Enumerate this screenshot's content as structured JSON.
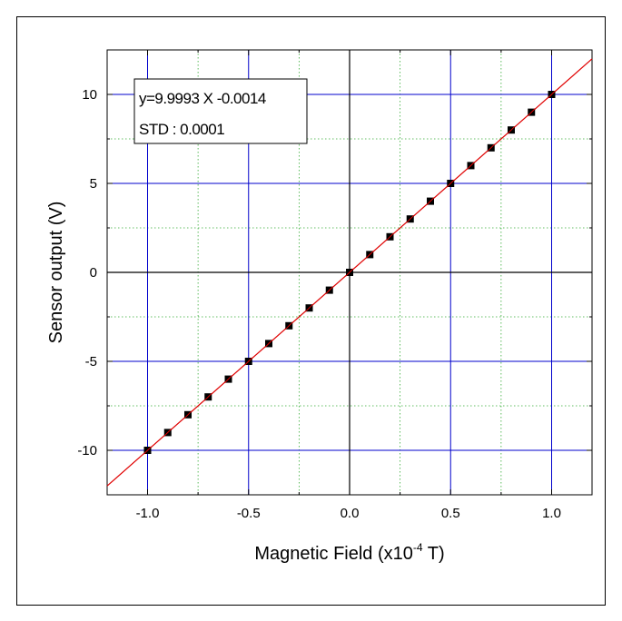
{
  "chart_data": {
    "type": "scatter",
    "xlabel": "Magnetic Field (x10",
    "xlabel_sup": "-4",
    "xlabel_suffix": " T)",
    "ylabel": "Sensor output (V)",
    "xlim": [
      -1.2,
      1.2
    ],
    "ylim": [
      -12.5,
      12.5
    ],
    "xticks": [
      -1.0,
      -0.5,
      0.0,
      0.5,
      1.0
    ],
    "xtick_labels": [
      "-1.0",
      "-0.5",
      "0.0",
      "0.5",
      "1.0"
    ],
    "yticks": [
      -10,
      -5,
      0,
      5,
      10
    ],
    "ytick_labels": [
      "-10",
      "-5",
      "0",
      "5",
      "10"
    ],
    "grid": true,
    "series": [
      {
        "marker": "square",
        "color": "#000000",
        "x": [
          -1.0,
          -0.9,
          -0.8,
          -0.7,
          -0.6,
          -0.5,
          -0.4,
          -0.3,
          -0.2,
          -0.1,
          0.0,
          0.1,
          0.2,
          0.3,
          0.4,
          0.5,
          0.6,
          0.7,
          0.8,
          0.9,
          1.0
        ],
        "y": [
          -10,
          -9,
          -8,
          -7,
          -6,
          -5,
          -4,
          -3,
          -2,
          -1,
          0,
          1,
          2,
          3,
          4,
          5,
          6,
          7,
          8,
          9,
          10
        ]
      }
    ],
    "fit_line": {
      "slope": 9.9993,
      "intercept": -0.0014,
      "x_range": [
        -1.2,
        1.2
      ],
      "color": "#e00000"
    },
    "annotation": [
      "y=9.9993 X -0.0014",
      "STD : 0.0001"
    ],
    "colors": {
      "major_grid": "#0000cc",
      "minor_grid": "#33aa33",
      "zero_axes": "#000000"
    }
  }
}
